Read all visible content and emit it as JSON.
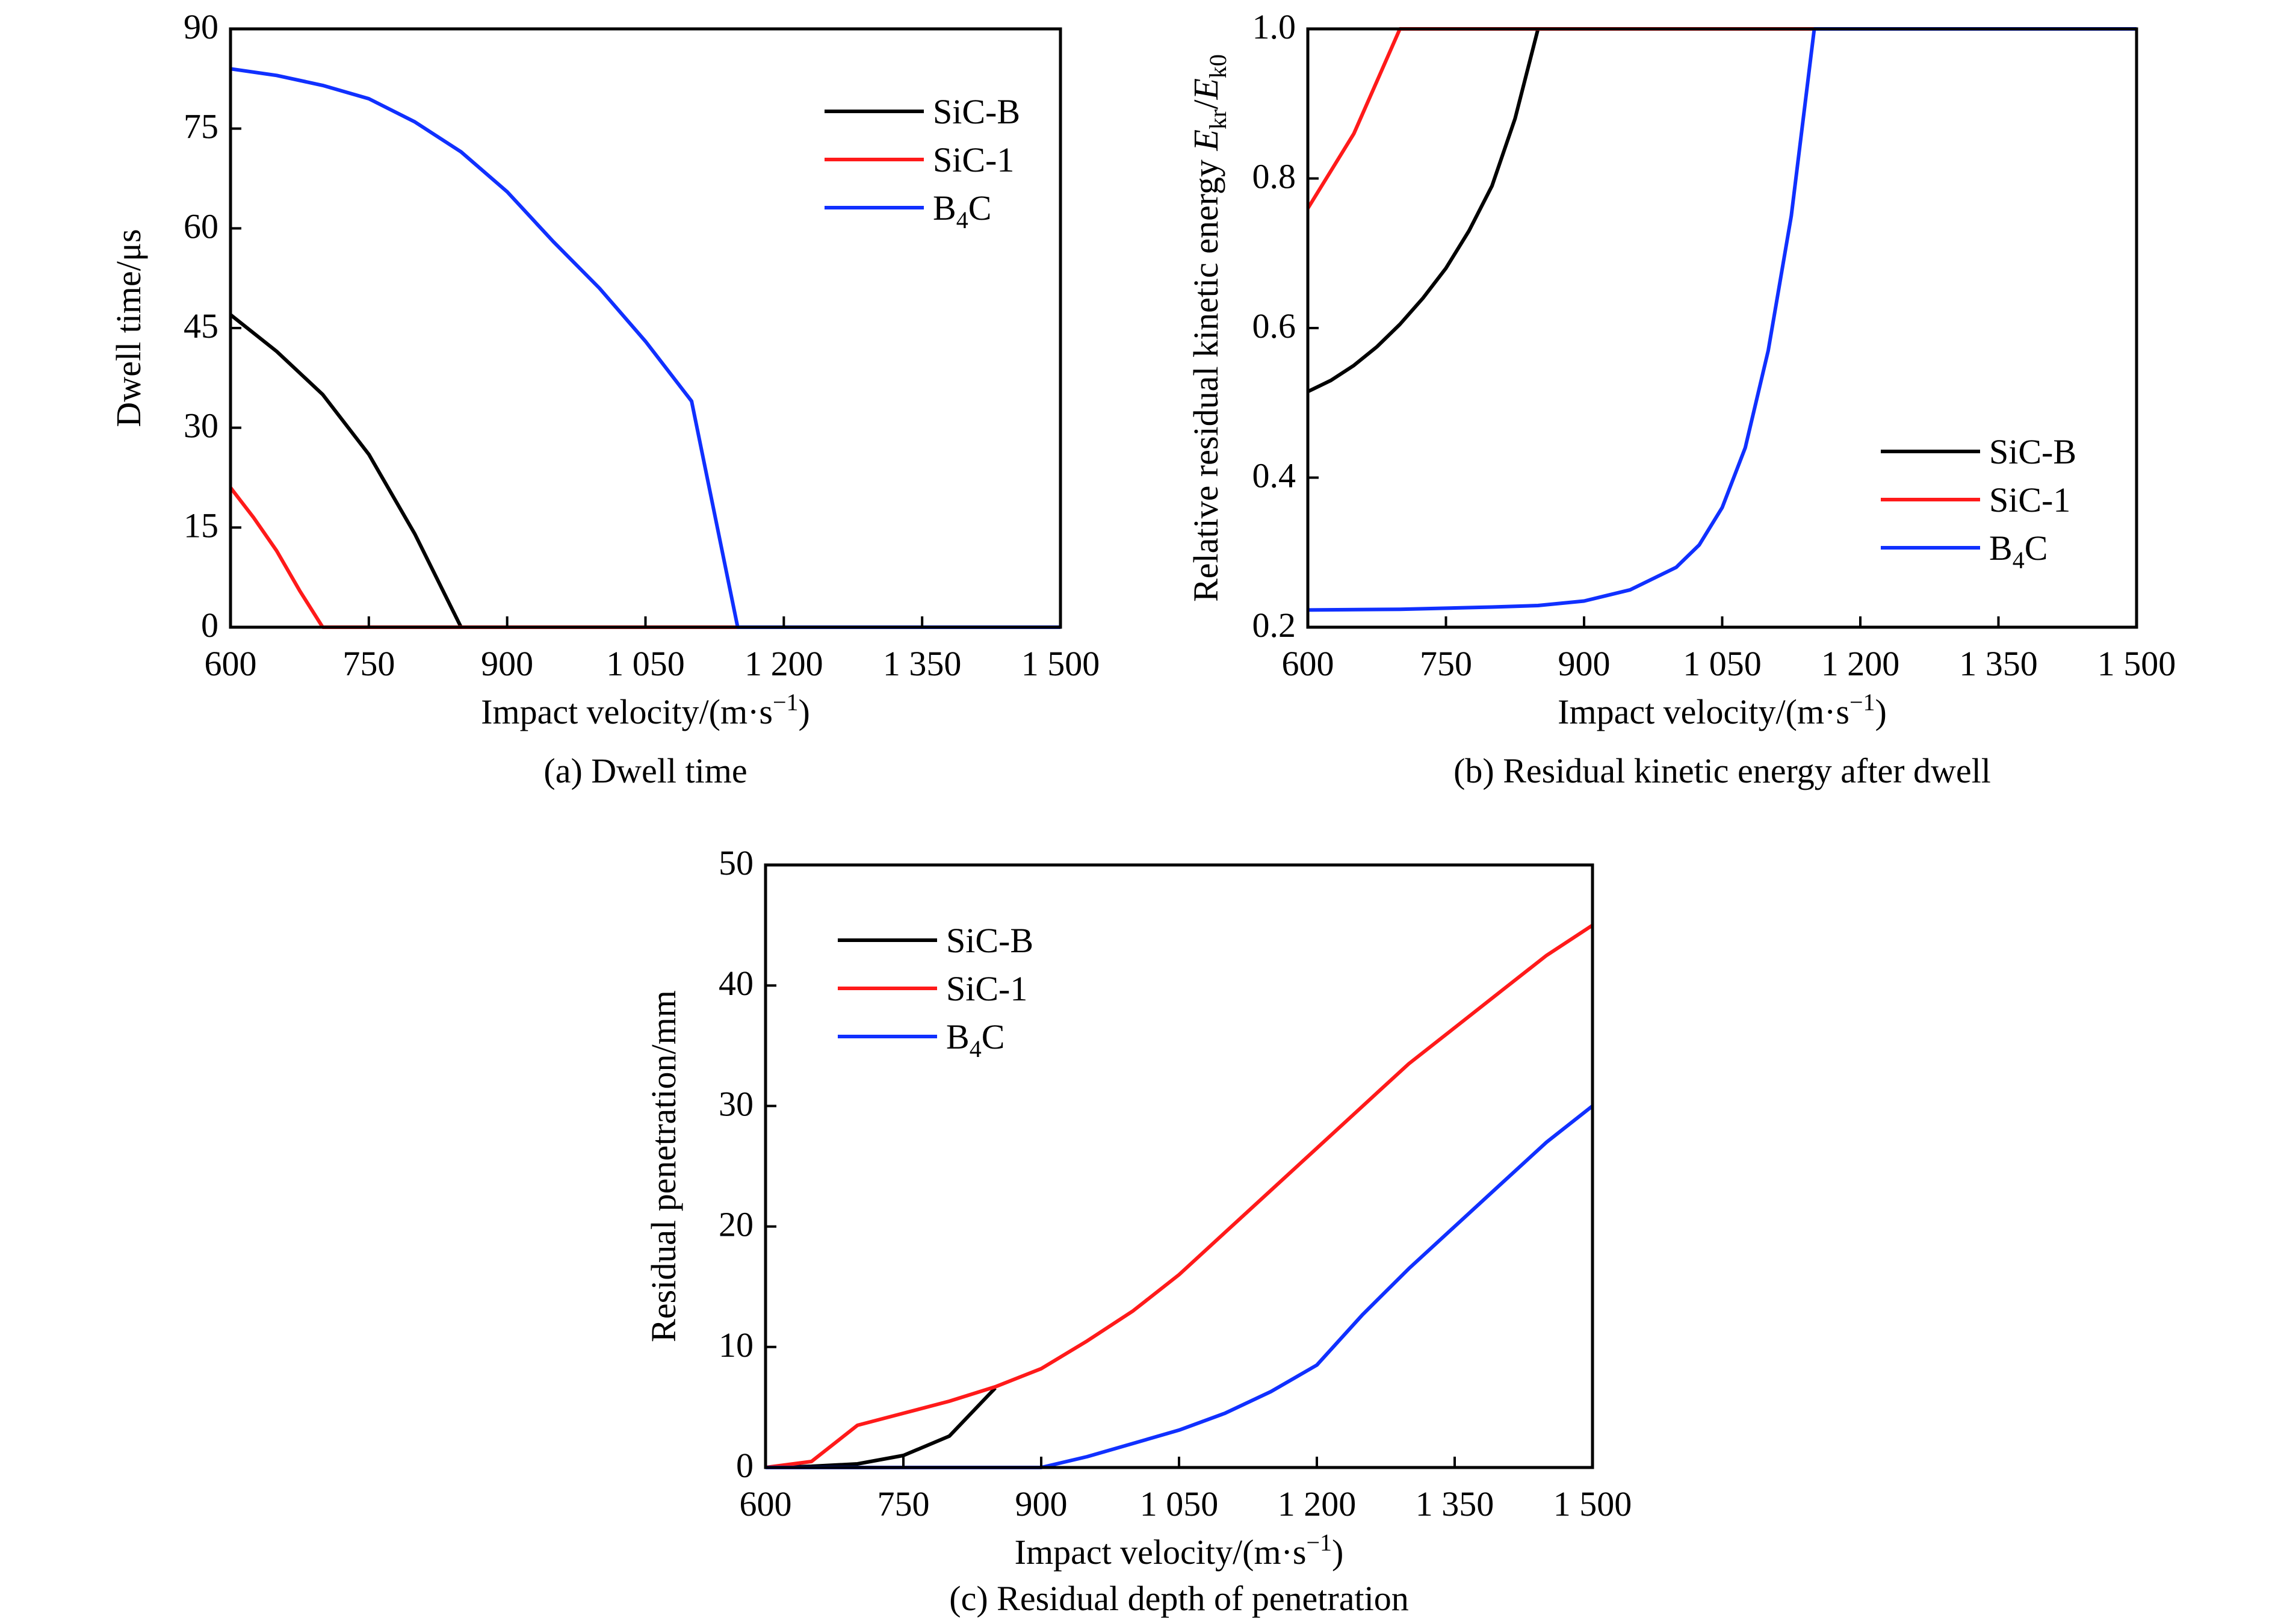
{
  "chart_data": [
    {
      "type": "line",
      "caption": "(a) Dwell time",
      "xlabel": "Impact velocity/(m·s⁻¹)",
      "ylabel": "Dwell time/μs",
      "xlim": [
        600,
        1500
      ],
      "ylim": [
        0,
        90
      ],
      "xticks": [
        600,
        750,
        900,
        1050,
        1200,
        1350,
        1500
      ],
      "xtick_labels": [
        "600",
        "750",
        "900",
        "1 050",
        "1 200",
        "1 350",
        "1 500"
      ],
      "yticks": [
        0,
        15,
        30,
        45,
        60,
        75,
        90
      ],
      "ytick_labels": [
        "0",
        "15",
        "30",
        "45",
        "60",
        "75",
        "90"
      ],
      "grid": false,
      "legend": "top-right",
      "series": [
        {
          "name": "SiC-B",
          "color": "#000000",
          "x": [
            600,
            650,
            700,
            750,
            800,
            850,
            1500
          ],
          "y": [
            47,
            41.5,
            35,
            26,
            14,
            0,
            0
          ]
        },
        {
          "name": "SiC-1",
          "color": "#ff1a1a",
          "x": [
            600,
            625,
            650,
            675,
            700,
            1500
          ],
          "y": [
            21,
            16.5,
            11.5,
            5.5,
            0,
            0
          ]
        },
        {
          "name": "B4C",
          "color": "#1030ff",
          "x": [
            600,
            650,
            700,
            750,
            800,
            850,
            900,
            950,
            1000,
            1050,
            1100,
            1150,
            1500
          ],
          "y": [
            84,
            83,
            81.5,
            79.5,
            76,
            71.5,
            65.5,
            58,
            51,
            43,
            34,
            0,
            0
          ]
        }
      ]
    },
    {
      "type": "line",
      "caption": "(b) Residual kinetic energy after dwell",
      "xlabel": "Impact velocity/(m·s⁻¹)",
      "ylabel": "Relative residual kinetic energy Ekr/Ek0",
      "xlim": [
        600,
        1500
      ],
      "ylim": [
        0.2,
        1.0
      ],
      "xticks": [
        600,
        750,
        900,
        1050,
        1200,
        1350,
        1500
      ],
      "xtick_labels": [
        "600",
        "750",
        "900",
        "1 050",
        "1 200",
        "1 350",
        "1 500"
      ],
      "yticks": [
        0.2,
        0.4,
        0.6,
        0.8,
        1.0
      ],
      "ytick_labels": [
        "0.2",
        "0.4",
        "0.6",
        "0.8",
        "1.0"
      ],
      "grid": false,
      "legend": "bottom-right",
      "series": [
        {
          "name": "SiC-B",
          "color": "#000000",
          "x": [
            600,
            625,
            650,
            675,
            700,
            725,
            750,
            775,
            800,
            825,
            850,
            1500
          ],
          "y": [
            0.515,
            0.53,
            0.55,
            0.575,
            0.605,
            0.64,
            0.68,
            0.73,
            0.79,
            0.88,
            1.0,
            1.0
          ]
        },
        {
          "name": "SiC-1",
          "color": "#ff1a1a",
          "x": [
            600,
            625,
            650,
            675,
            700,
            1500
          ],
          "y": [
            0.76,
            0.81,
            0.86,
            0.93,
            1.0,
            1.0
          ]
        },
        {
          "name": "B4C",
          "color": "#1030ff",
          "x": [
            600,
            700,
            800,
            850,
            900,
            950,
            1000,
            1025,
            1050,
            1075,
            1100,
            1125,
            1150,
            1500
          ],
          "y": [
            0.223,
            0.224,
            0.227,
            0.229,
            0.235,
            0.25,
            0.28,
            0.31,
            0.36,
            0.44,
            0.57,
            0.75,
            1.0,
            1.0
          ]
        }
      ]
    },
    {
      "type": "line",
      "caption": "(c) Residual depth of penetration",
      "xlabel": "Impact velocity/(m·s⁻¹)",
      "ylabel": "Residual penetration/mm",
      "xlim": [
        600,
        1500
      ],
      "ylim": [
        0,
        50
      ],
      "xticks": [
        600,
        750,
        900,
        1050,
        1200,
        1350,
        1500
      ],
      "xtick_labels": [
        "600",
        "750",
        "900",
        "1 050",
        "1 200",
        "1 350",
        "1 500"
      ],
      "yticks": [
        0,
        10,
        20,
        30,
        40,
        50
      ],
      "ytick_labels": [
        "0",
        "10",
        "20",
        "30",
        "40",
        "50"
      ],
      "grid": false,
      "legend": "top-left",
      "series": [
        {
          "name": "SiC-B",
          "color": "#000000",
          "x": [
            600,
            650,
            700,
            750,
            800,
            850
          ],
          "y": [
            0,
            0.1,
            0.3,
            1.0,
            2.6,
            6.6
          ]
        },
        {
          "name": "SiC-1",
          "color": "#ff1a1a",
          "x": [
            600,
            650,
            700,
            750,
            800,
            850,
            900,
            950,
            1000,
            1050,
            1100,
            1150,
            1200,
            1250,
            1300,
            1350,
            1400,
            1450,
            1500
          ],
          "y": [
            0,
            0.5,
            3.5,
            4.5,
            5.5,
            6.7,
            8.2,
            10.5,
            13,
            16,
            19.5,
            23,
            26.5,
            30,
            33.5,
            36.5,
            39.5,
            42.5,
            45
          ]
        },
        {
          "name": "B4C",
          "color": "#1030ff",
          "x": [
            600,
            900,
            950,
            1000,
            1050,
            1100,
            1150,
            1200,
            1250,
            1300,
            1350,
            1400,
            1450,
            1500
          ],
          "y": [
            0,
            0,
            0.9,
            2.0,
            3.1,
            4.5,
            6.3,
            8.5,
            12.7,
            16.5,
            20,
            23.5,
            27,
            30
          ]
        }
      ]
    }
  ]
}
